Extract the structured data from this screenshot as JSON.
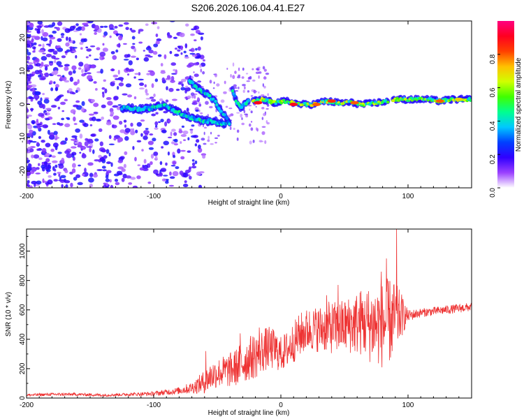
{
  "figure": {
    "title": "S206.2026.106.04.41.E27"
  },
  "chart_data": [
    {
      "type": "heatmap",
      "xlabel": "Height of straight line (km)",
      "ylabel": "Frequency (Hz)",
      "xlim": [
        -200,
        150
      ],
      "ylim": [
        -25,
        25
      ],
      "x_ticks": [
        -200,
        -100,
        0,
        100
      ],
      "x_tick_labels": [
        "-200",
        "-100",
        "0",
        "100"
      ],
      "y_ticks": [
        20,
        10,
        0,
        -10,
        -20
      ],
      "y_tick_labels": [
        "20",
        "10",
        "0",
        "-10",
        "-20"
      ],
      "colorbar": {
        "label": "Normalized spectral amplitude",
        "range": [
          0,
          1
        ],
        "ticks": [
          0.0,
          0.2,
          0.4,
          0.6,
          0.8
        ],
        "tick_labels": [
          "0.0",
          "0.2",
          "0.4",
          "0.6",
          "0.8"
        ],
        "colors": [
          "#ffffff",
          "#9a40ff",
          "#3000ff",
          "#0040ff",
          "#00c8ff",
          "#00ff90",
          "#40ff00",
          "#d0ff00",
          "#ffc000",
          "#ff4000",
          "#ff0020",
          "#ff0080"
        ]
      },
      "ridge_segments": [
        {
          "x": [
            -125,
            -110,
            -100,
            -92,
            -85,
            -78,
            -70,
            -60,
            -52,
            -45,
            -40
          ],
          "y": [
            -1,
            -1.5,
            -1,
            0,
            -1.5,
            -3,
            -4,
            -5,
            -5,
            -6,
            -5
          ]
        },
        {
          "x": [
            -72,
            -66,
            -58,
            -52,
            -47,
            -43,
            -40
          ],
          "y": [
            7,
            5,
            3,
            1,
            -2,
            -4,
            -6
          ]
        },
        {
          "x": [
            -38,
            -35,
            -32,
            -28,
            -25
          ],
          "y": [
            4,
            1,
            -1,
            0,
            1
          ]
        },
        {
          "x": [
            -22,
            -15,
            -5,
            5,
            15,
            25,
            35,
            45,
            55,
            65,
            75,
            85
          ],
          "y": [
            1,
            1.5,
            0.5,
            1,
            0,
            0,
            1,
            0.5,
            0.5,
            0,
            0.5,
            1
          ]
        },
        {
          "x": [
            88,
            95,
            105,
            115,
            125,
            135,
            145,
            150
          ],
          "y": [
            1.5,
            1.5,
            1.5,
            1.5,
            1,
            1.5,
            1.5,
            1.5
          ]
        }
      ],
      "hotspots": [
        {
          "x": -18,
          "y": 0.5,
          "level": 0.9
        },
        {
          "x": 10,
          "y": 0,
          "level": 0.9
        },
        {
          "x": 28,
          "y": 0,
          "level": 0.8
        },
        {
          "x": 40,
          "y": 1,
          "level": 0.85
        },
        {
          "x": 58,
          "y": 0.5,
          "level": 0.8
        },
        {
          "x": 125,
          "y": 1,
          "level": 0.8
        },
        {
          "x": 140,
          "y": 1.5,
          "level": 0.7
        }
      ]
    },
    {
      "type": "line",
      "xlabel": "Height of straight line (km)",
      "ylabel": "SNR (10 * v/v)",
      "xlim": [
        -200,
        150
      ],
      "ylim": [
        0,
        1150
      ],
      "x_ticks": [
        -200,
        -100,
        0,
        100
      ],
      "x_tick_labels": [
        "-200",
        "-100",
        "0",
        "100"
      ],
      "y_ticks": [
        0,
        200,
        400,
        600,
        800,
        1000
      ],
      "y_tick_labels": [
        "0",
        "200",
        "400",
        "600",
        "800",
        "1000"
      ],
      "series": [
        {
          "name": "SNR",
          "color": "#ee3333",
          "envelope": {
            "x": [
              -200,
              -180,
              -160,
              -140,
              -120,
              -100,
              -90,
              -80,
              -70,
              -60,
              -55,
              -50,
              -45,
              -40,
              -35,
              -30,
              -25,
              -20,
              -15,
              -10,
              -5,
              0,
              5,
              10,
              15,
              20,
              25,
              30,
              35,
              40,
              45,
              50,
              55,
              60,
              65,
              70,
              75,
              80,
              85,
              90,
              95,
              100,
              110,
              120,
              130,
              140,
              150
            ],
            "mean": [
              20,
              25,
              25,
              20,
              25,
              30,
              40,
              50,
              70,
              110,
              150,
              170,
              180,
              190,
              210,
              240,
              270,
              290,
              320,
              340,
              330,
              300,
              330,
              380,
              430,
              460,
              470,
              470,
              480,
              480,
              480,
              490,
              500,
              510,
              520,
              500,
              500,
              500,
              520,
              540,
              560,
              560,
              580,
              590,
              600,
              610,
              620
            ],
            "noise": [
              10,
              10,
              10,
              10,
              10,
              15,
              20,
              25,
              40,
              80,
              100,
              100,
              110,
              120,
              130,
              150,
              150,
              160,
              150,
              150,
              140,
              120,
              130,
              140,
              150,
              150,
              150,
              160,
              170,
              180,
              180,
              190,
              200,
              220,
              240,
              260,
              280,
              300,
              300,
              250,
              150,
              40,
              30,
              30,
              30,
              30,
              30
            ]
          },
          "peaks": [
            {
              "x": -59,
              "y": 320
            },
            {
              "x": -32,
              "y": 440
            },
            {
              "x": -17,
              "y": 480
            },
            {
              "x": 36,
              "y": 700
            },
            {
              "x": 45,
              "y": 770
            },
            {
              "x": 66,
              "y": 660
            },
            {
              "x": 79,
              "y": 860
            },
            {
              "x": 83,
              "y": 950
            },
            {
              "x": 91,
              "y": 1160
            }
          ]
        }
      ]
    }
  ]
}
